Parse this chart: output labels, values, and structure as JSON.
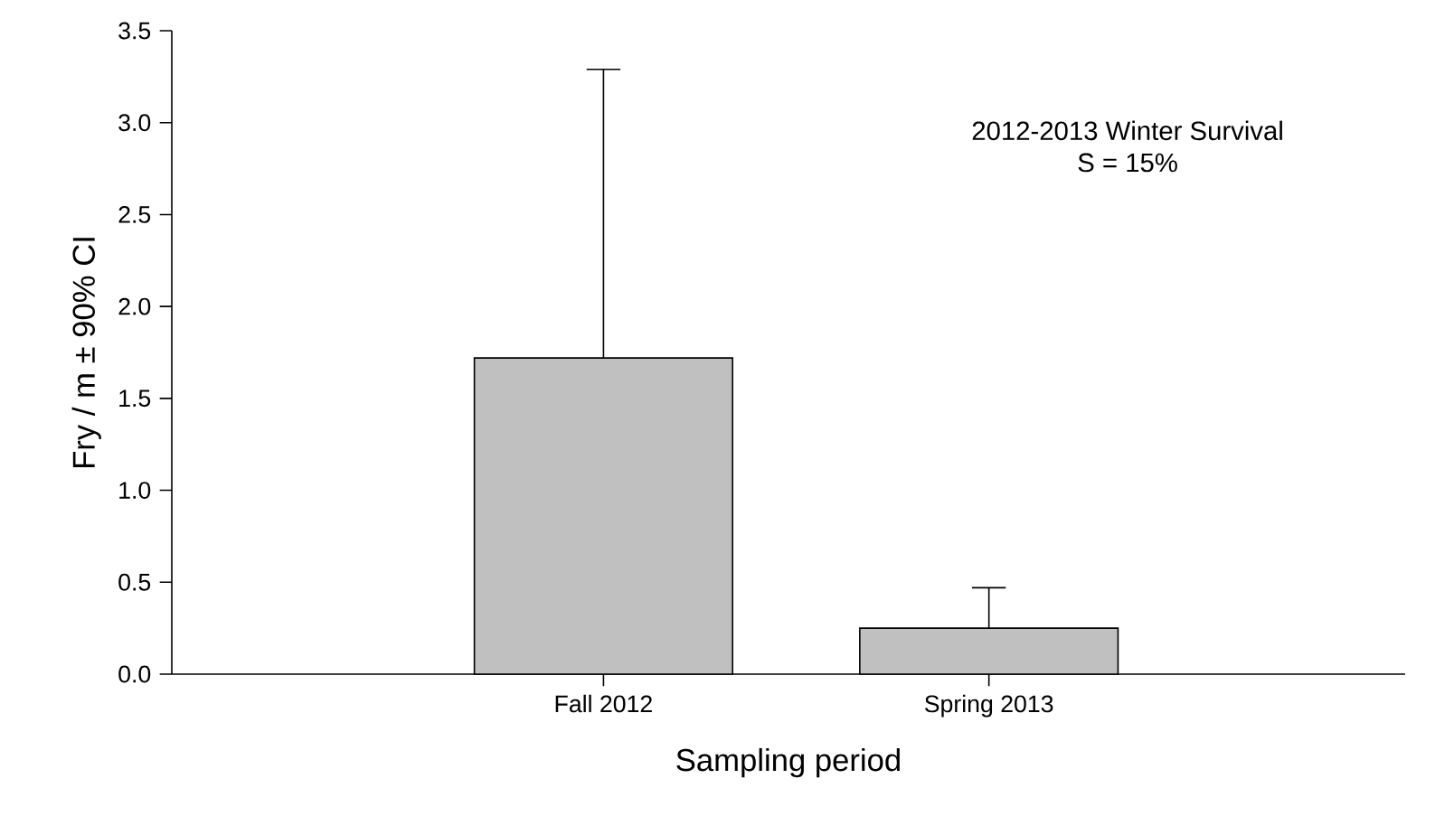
{
  "chart_data": {
    "type": "bar",
    "xlabel": "Sampling period",
    "ylabel": "Fry / m ± 90% CI",
    "categories": [
      "Fall 2012",
      "Spring 2013"
    ],
    "values": [
      1.72,
      0.25
    ],
    "color": "#c0c0c0",
    "errors": [
      1.57,
      0.22
    ],
    "ylim": [
      0,
      3.5
    ],
    "yticks": [
      {
        "value": 0,
        "label": "0.0"
      },
      {
        "value": 0.5,
        "label": "0.5"
      },
      {
        "value": 1,
        "label": "1.0"
      },
      {
        "value": 1.5,
        "label": "1.5"
      },
      {
        "value": 2,
        "label": "2.0"
      },
      {
        "value": 2.5,
        "label": "2.5"
      },
      {
        "value": 3,
        "label": "3.0"
      },
      {
        "value": 3.5,
        "label": "3.5"
      }
    ],
    "annotations": [
      "2012-2013 Winter Survival",
      "S = 15%"
    ],
    "grid": false,
    "legend": false
  }
}
